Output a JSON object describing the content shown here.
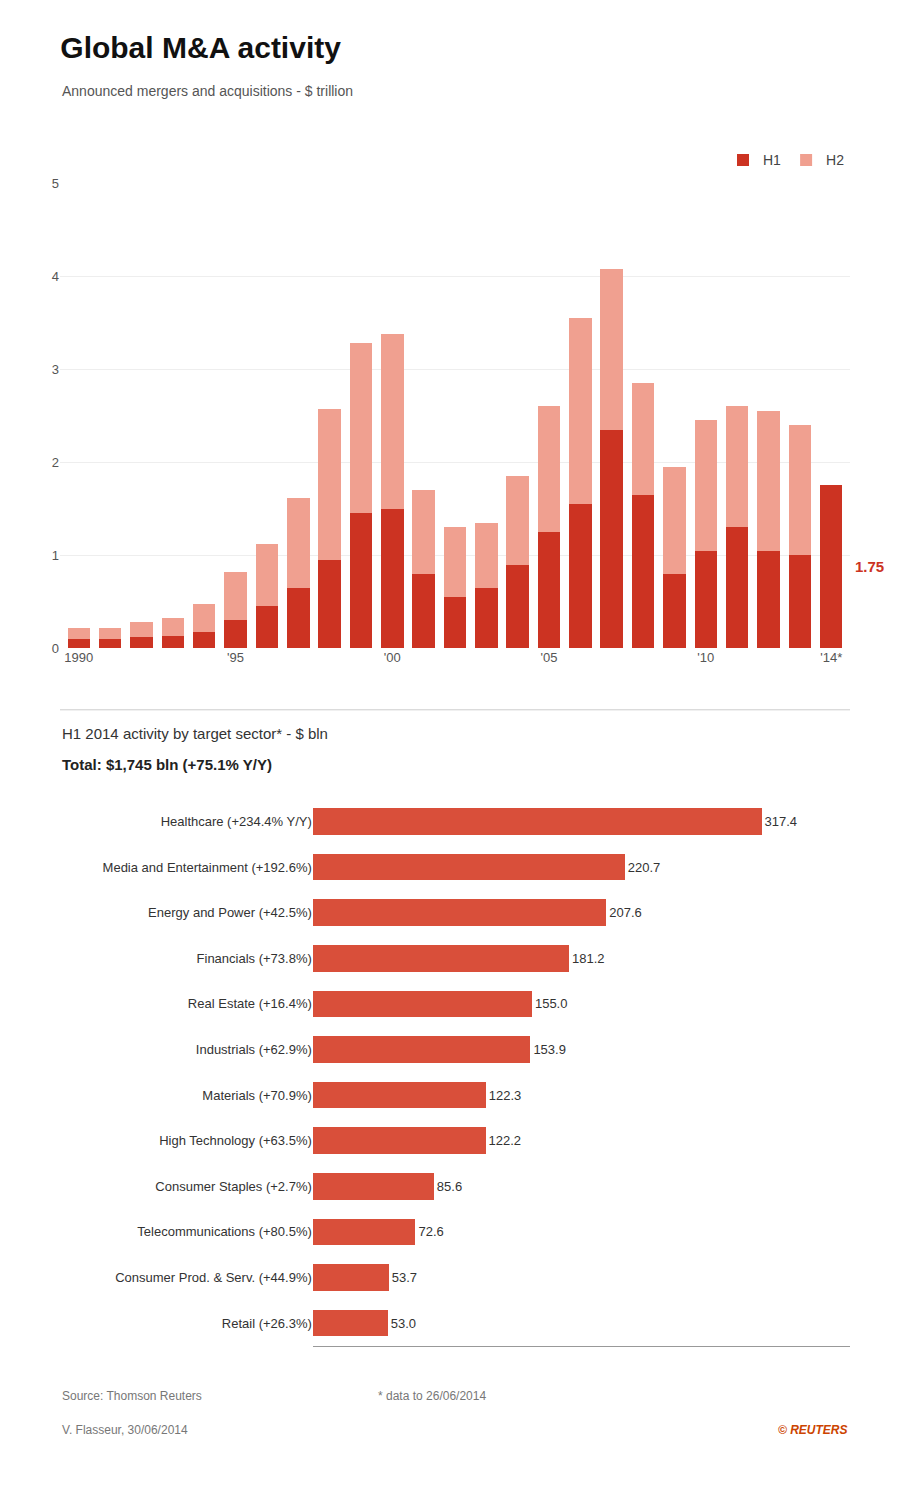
{
  "chart_data": [
    {
      "type": "bar",
      "title": "Global M&A activity",
      "subtitle": "Announced mergers and acquisitions - $ trillion",
      "categories": [
        "1990",
        null,
        null,
        null,
        null,
        "'95",
        null,
        null,
        null,
        null,
        "'00",
        null,
        null,
        null,
        null,
        "'05",
        null,
        null,
        null,
        null,
        "'10",
        null,
        null,
        null,
        "'14*"
      ],
      "series": [
        {
          "name": "H1",
          "color": "#cc3322",
          "values": [
            0.1,
            0.1,
            0.12,
            0.13,
            0.18,
            0.3,
            0.45,
            0.65,
            0.95,
            1.45,
            1.5,
            0.8,
            0.55,
            0.65,
            0.9,
            1.25,
            1.55,
            2.35,
            1.65,
            0.8,
            1.05,
            1.3,
            1.05,
            1.0,
            1.75
          ]
        },
        {
          "name": "H2",
          "color": "#f0a090",
          "values": [
            0.12,
            0.12,
            0.16,
            0.19,
            0.3,
            0.52,
            0.67,
            0.97,
            1.62,
            1.83,
            1.88,
            0.9,
            0.75,
            0.7,
            0.95,
            1.35,
            2.0,
            1.73,
            1.2,
            1.15,
            1.4,
            1.3,
            1.5,
            1.4,
            0
          ]
        }
      ],
      "stacked": true,
      "ylim": [
        0,
        5
      ],
      "yticks": [
        0,
        1,
        2,
        3,
        4,
        5
      ],
      "grid": true,
      "legend": "upper right",
      "annotations": [
        {
          "text": "1.75",
          "color": "#cc3322"
        }
      ]
    },
    {
      "type": "bar",
      "orientation": "horizontal",
      "title": "H1 2014 activity by target sector* - $ bln",
      "subtitle": "Total: $1,745 bln (+75.1% Y/Y)",
      "categories": [
        "Healthcare (+234.4% Y/Y)",
        "Media and Entertainment (+192.6%)",
        "Energy and Power (+42.5%)",
        "Financials (+73.8%)",
        "Real Estate (+16.4%)",
        "Industrials (+62.9%)",
        "Materials (+70.9%)",
        "High Technology (+63.5%)",
        "Consumer Staples (+2.7%)",
        "Telecommunications (+80.5%)",
        "Consumer Prod. & Serv. (+44.9%)",
        "Retail (+26.3%)"
      ],
      "values": [
        317.4,
        220.7,
        207.6,
        181.2,
        155.0,
        153.9,
        122.3,
        122.2,
        85.6,
        72.6,
        53.7,
        53.0
      ],
      "value_labels": [
        "317.4",
        "220.7",
        "207.6",
        "181.2",
        "155.0",
        "153.9",
        "122.3",
        "122.2",
        "85.6",
        "72.6",
        "53.7",
        "53.0"
      ],
      "color": "#d94f3a",
      "xlim": [
        0,
        380
      ],
      "data_labels": true,
      "tick_labels": "y",
      "grid": false,
      "annotations": [
        {
          "text": "Source: Thomson Reuters"
        },
        {
          "text": "* data to 26/06/2014"
        },
        {
          "text": "V. Flasseur, 30/06/2014"
        },
        {
          "text": "© REUTERS",
          "color": "#cc4400"
        }
      ]
    }
  ]
}
